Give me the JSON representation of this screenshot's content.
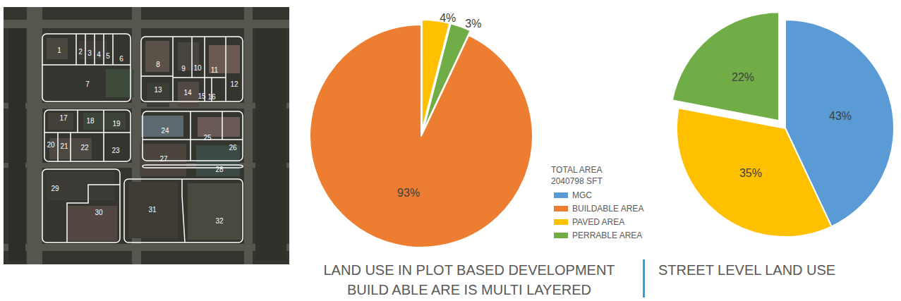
{
  "chart_data": [
    {
      "type": "pie",
      "title": "LAND USE IN PLOT BASED DEVELOPMENT",
      "subtitle": "BUILD ABLE ARE IS MULTI LAYERED",
      "categories": [
        "PAVED AREA",
        "PERRABLE AREA",
        "BUILDABLE AREA"
      ],
      "values": [
        4,
        3,
        93
      ],
      "value_labels": [
        "4%",
        "3%",
        "93%"
      ],
      "colors": [
        "#ffc000",
        "#70ad47",
        "#ed7d31"
      ],
      "data_labels": true
    },
    {
      "type": "pie",
      "title": "STREET LEVEL LAND USE",
      "categories": [
        "MGC",
        "PAVED AREA",
        "PERRABLE AREA"
      ],
      "values": [
        43,
        35,
        22
      ],
      "value_labels": [
        "43%",
        "35%",
        "22%"
      ],
      "colors": [
        "#5b9bd5",
        "#ffc000",
        "#70ad47"
      ],
      "data_labels": true
    }
  ],
  "legend": {
    "title": "TOTAL AREA",
    "total_area": 2040798,
    "unit": "SFT",
    "items": [
      "MGC",
      "BUILDABLE AREA",
      "PAVED AREA",
      "PERRABLE AREA"
    ]
  },
  "map": {
    "plot_labels": [
      1,
      2,
      3,
      4,
      5,
      6,
      7,
      8,
      9,
      10,
      11,
      12,
      13,
      14,
      15,
      16,
      17,
      18,
      19,
      20,
      21,
      22,
      23,
      24,
      25,
      26,
      27,
      28,
      29,
      30,
      31,
      32
    ]
  }
}
